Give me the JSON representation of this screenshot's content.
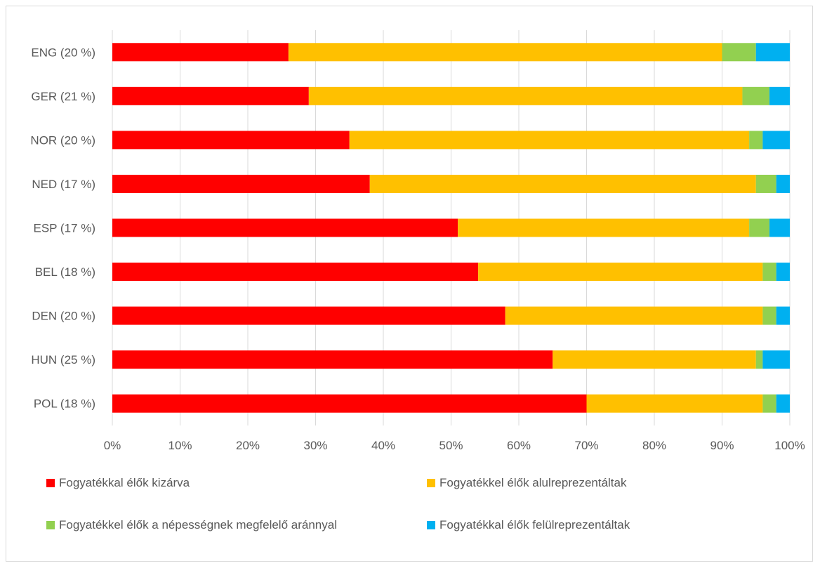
{
  "chart_data": {
    "type": "bar",
    "orientation": "horizontal",
    "stacked": "percent",
    "categories": [
      "ENG (20 %)",
      "GER (21 %)",
      "NOR (20 %)",
      "NED (17 %)",
      "ESP (17 %)",
      "BEL (18 %)",
      "DEN (20 %)",
      "HUN (25 %)",
      "POL (18 %)"
    ],
    "series": [
      {
        "name": "Fogyatékkal élők kizárva",
        "color": "#ff0000",
        "values": [
          26,
          29,
          35,
          38,
          51,
          54,
          58,
          65,
          70
        ]
      },
      {
        "name": "Fogyatékkel élők alulreprezentáltak",
        "color": "#ffc000",
        "values": [
          64,
          64,
          59,
          57,
          43,
          42,
          38,
          30,
          26
        ]
      },
      {
        "name": "Fogyatékkel élők a népességnek megfelelő aránnyal",
        "color": "#92d050",
        "values": [
          5,
          4,
          2,
          3,
          3,
          2,
          2,
          1,
          2
        ]
      },
      {
        "name": "Fogyatékkal élők felülreprezentáltak",
        "color": "#00b0f0",
        "values": [
          5,
          3,
          4,
          2,
          3,
          2,
          2,
          4,
          2
        ]
      }
    ],
    "x_ticks": [
      "0%",
      "10%",
      "20%",
      "30%",
      "40%",
      "50%",
      "60%",
      "70%",
      "80%",
      "90%",
      "100%"
    ],
    "xlim": [
      0,
      100
    ],
    "grid": "vertical",
    "legend_position": "bottom"
  }
}
